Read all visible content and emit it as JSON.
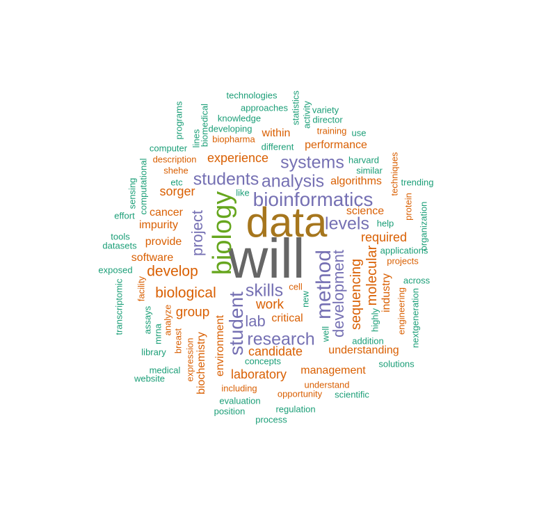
{
  "palette": {
    "gray": "#666666",
    "gold": "#A6761D",
    "green": "#66A61E",
    "purple": "#7570B3",
    "orange": "#D95F02",
    "teal": "#1B9E77"
  },
  "words": {
    "will": "will",
    "data": "data",
    "biology": "biology",
    "bioinformatics": "bioinformatics",
    "method": "method",
    "student": "student",
    "systems": "systems",
    "analysis": "analysis",
    "students": "students",
    "research": "research",
    "skills": "skills",
    "levels": "levels",
    "development": "development",
    "project": "project",
    "lab": "lab",
    "molecular": "molecular",
    "sequencing": "sequencing",
    "develop": "develop",
    "biological": "biological",
    "experience": "experience",
    "candidate": "candidate",
    "laboratory": "laboratory",
    "work": "work",
    "group": "group",
    "required": "required",
    "algorithms": "algorithms",
    "sorger": "sorger",
    "performance": "performance",
    "management": "management",
    "understanding": "understanding",
    "science": "science",
    "environment": "environment",
    "biochemistry": "biochemistry",
    "industry": "industry",
    "critical": "critical",
    "within": "within",
    "cancer": "cancer",
    "impurity": "impurity",
    "provide": "provide",
    "software": "software",
    "understand": "understand",
    "opportunity": "opportunity",
    "including": "including",
    "training": "training",
    "biopharma": "biopharma",
    "description": "description",
    "shehe": "shehe",
    "techniques": "techniques",
    "expression": "expression",
    "analyze": "analyze",
    "breast": "breast",
    "facility": "facility",
    "engineering": "engineering",
    "protein": "protein",
    "cell": "cell",
    "projects": "projects",
    "technologies": "technologies",
    "approaches": "approaches",
    "knowledge": "knowledge",
    "developing": "developing",
    "computer": "computer",
    "different": "different",
    "variety": "variety",
    "director": "director",
    "use": "use",
    "harvard": "harvard",
    "similar": "similar",
    "trending": "trending",
    "help": "help",
    "applications": "applications",
    "across": "across",
    "statistics": "statistics",
    "activity": "activity",
    "programs": "programs",
    "lines": "lines",
    "biomedical": "biomedical",
    "sensing": "sensing",
    "computational": "computational",
    "etc": "etc",
    "like": "like",
    "effort": "effort",
    "tools": "tools",
    "datasets": "datasets",
    "exposed": "exposed",
    "transcriptomic": "transcriptomic",
    "assays": "assays",
    "mrna": "mrna",
    "library": "library",
    "medical": "medical",
    "website": "website",
    "concepts": "concepts",
    "new": "new",
    "well": "well",
    "highly": "highly",
    "addition": "addition",
    "solutions": "solutions",
    "nextgeneration": "nextgeneration",
    "organization": "organization",
    "evaluation": "evaluation",
    "position": "position",
    "process": "process",
    "regulation": "regulation",
    "scientific": "scientific"
  }
}
